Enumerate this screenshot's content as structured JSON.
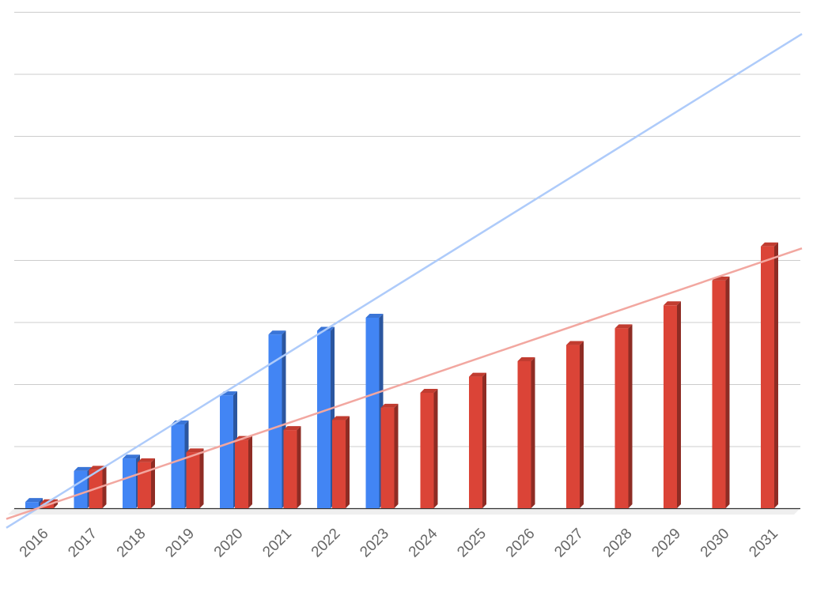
{
  "chart_data": {
    "type": "bar",
    "title": "",
    "xlabel": "",
    "ylabel": "",
    "categories": [
      "2016",
      "2017",
      "2018",
      "2019",
      "2020",
      "2021",
      "2022",
      "2023",
      "2024",
      "2025",
      "2026",
      "2027",
      "2028",
      "2029",
      "2030",
      "2031"
    ],
    "ylim": [
      0,
      8
    ],
    "grid": true,
    "style": "3d-columns",
    "series": [
      {
        "color": "#4285f4",
        "values": [
          0.1,
          0.6,
          0.8,
          1.35,
          1.82,
          2.8,
          2.86,
          3.07,
          null,
          null,
          null,
          null,
          null,
          null,
          null,
          null
        ]
      },
      {
        "color": "#db4437",
        "values": [
          0.08,
          0.62,
          0.74,
          0.9,
          1.1,
          1.26,
          1.42,
          1.62,
          1.86,
          2.12,
          2.37,
          2.63,
          2.9,
          3.27,
          3.67,
          4.22
        ]
      }
    ],
    "trendlines": [
      {
        "series": 0,
        "color": "#aecbfa",
        "start": {
          "x": "2016",
          "y": 0.0
        },
        "end": {
          "x": "2031",
          "y": 7.3
        }
      },
      {
        "series": 1,
        "color": "#f2a7a0",
        "start": {
          "x": "2016",
          "y": 0.0
        },
        "end": {
          "x": "2031",
          "y": 4.0
        }
      }
    ]
  }
}
